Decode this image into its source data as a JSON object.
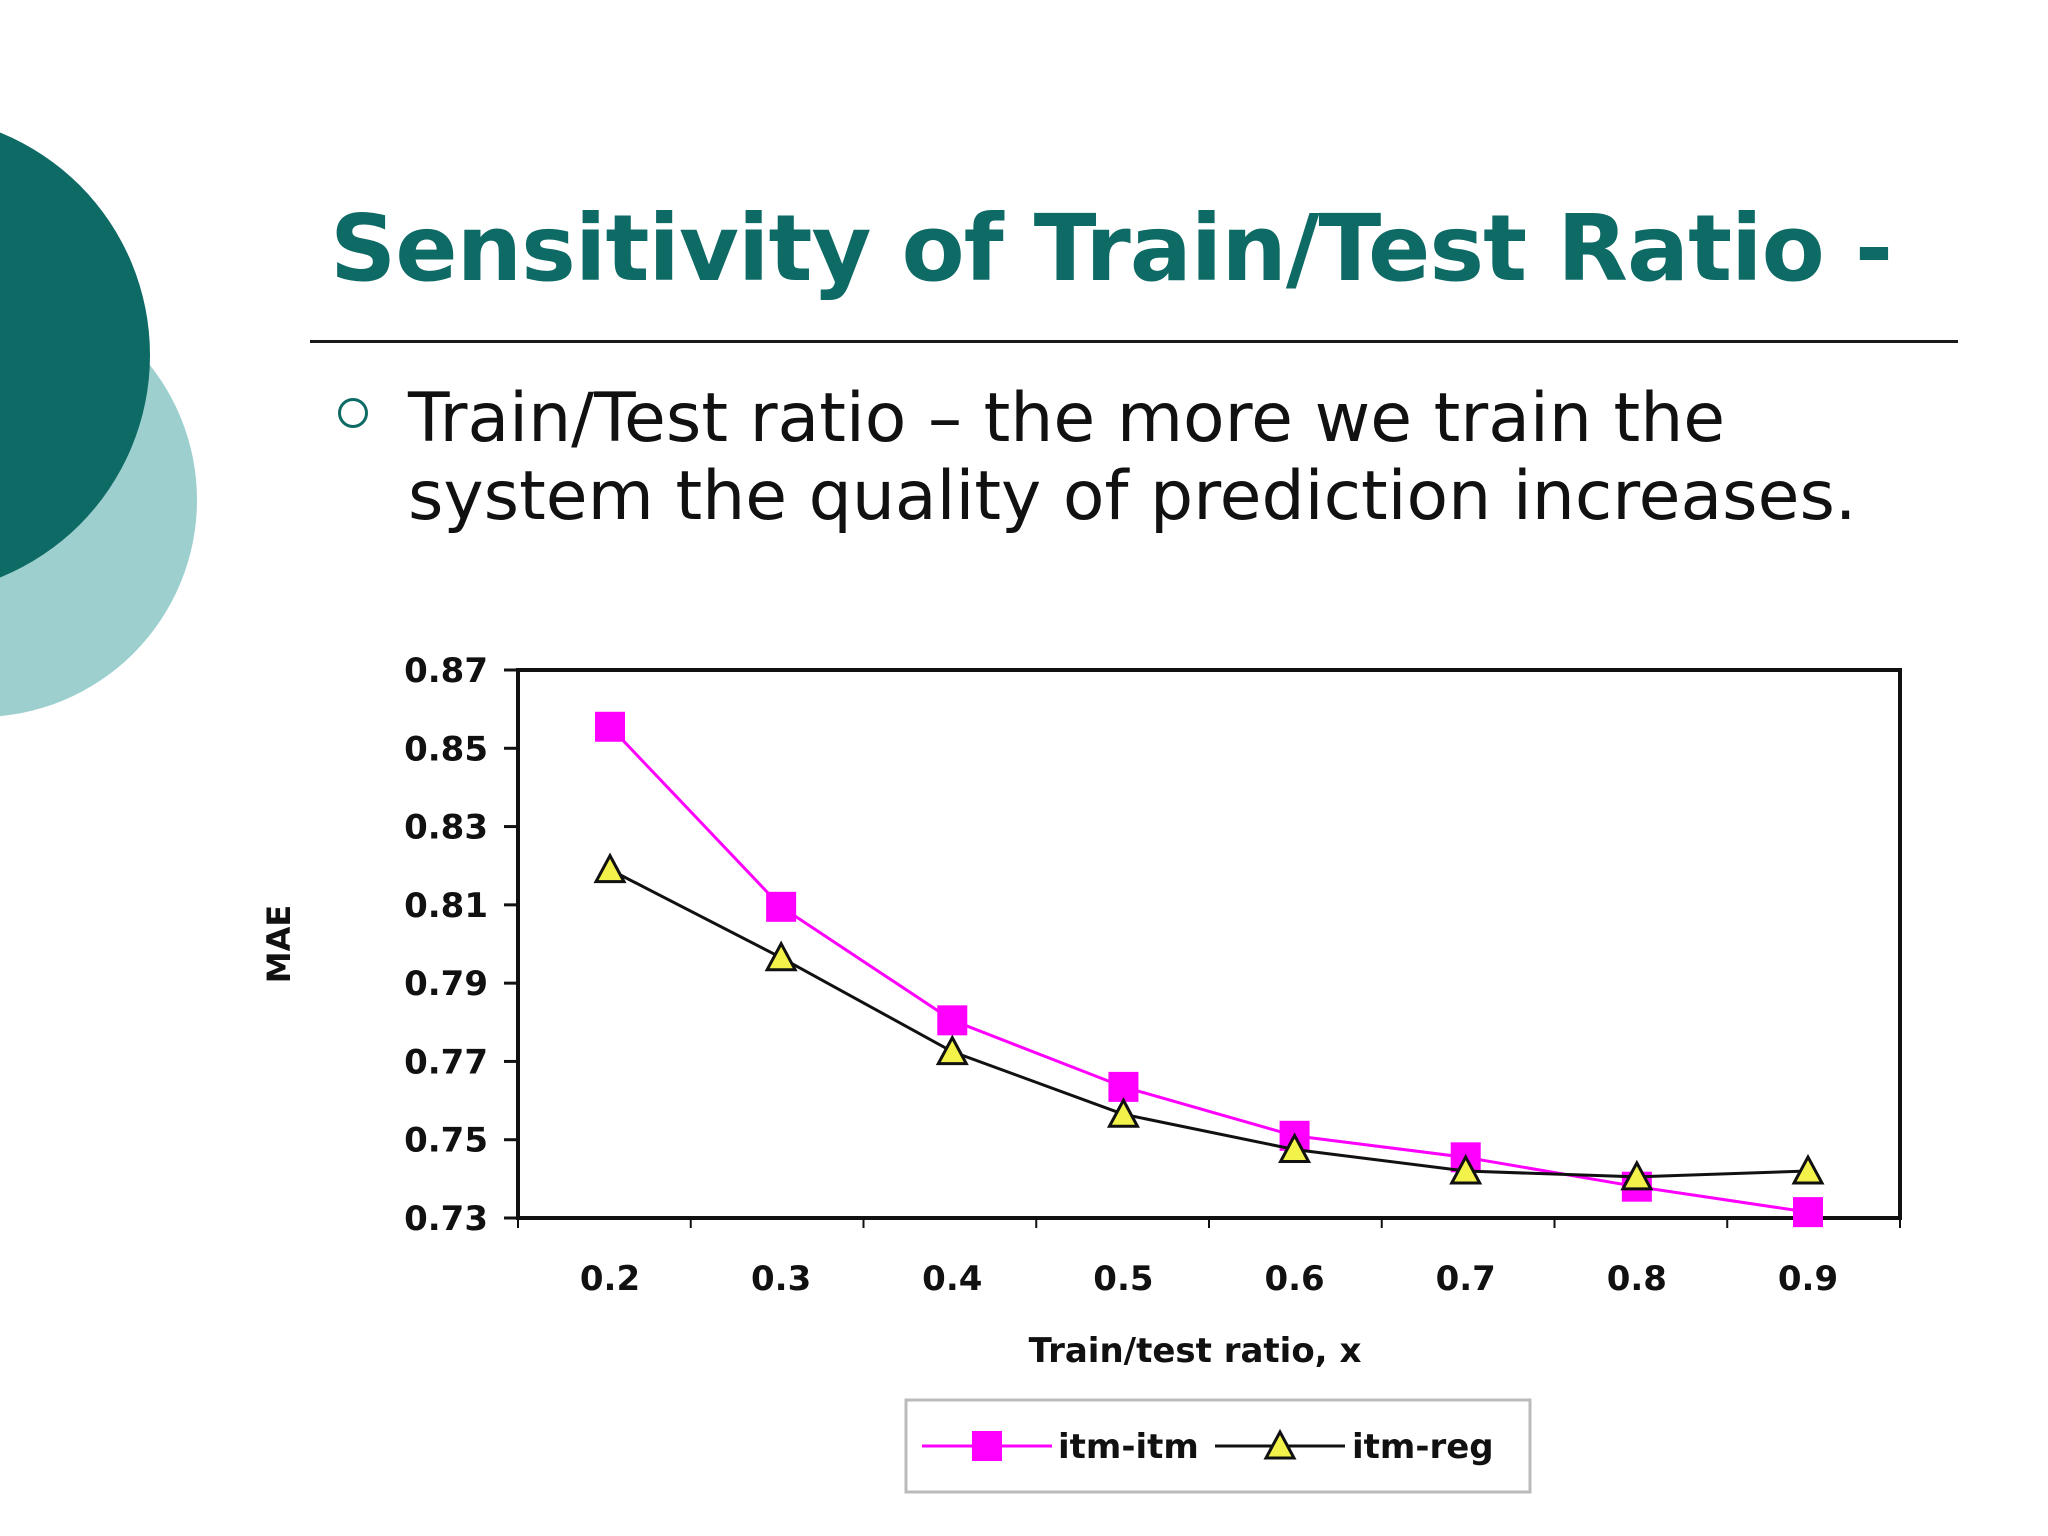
{
  "slide": {
    "title": "Sensitivity of Train/Test Ratio -",
    "bullet": "Train/Test ratio – the more we train the system the quality of prediction increases.",
    "colors": {
      "title": "#0e6a65",
      "circle_dark": "#0e6a65",
      "circle_light": "#9ecfcf"
    },
    "bullet_icon": "hollow-circle-bullet-icon"
  },
  "chart_data": {
    "type": "line",
    "xlabel": "Train/test ratio, x",
    "ylabel": "MAE",
    "x": [
      0.2,
      0.3,
      0.4,
      0.5,
      0.6,
      0.7,
      0.8,
      0.9
    ],
    "x_tick_labels": [
      "0.2",
      "0.3",
      "0.4",
      "0.5",
      "0.6",
      "0.7",
      "0.8",
      "0.9"
    ],
    "ylim": [
      0.73,
      0.87
    ],
    "y_ticks": [
      0.73,
      0.75,
      0.77,
      0.79,
      0.81,
      0.83,
      0.85,
      0.87
    ],
    "y_tick_labels": [
      "0.73",
      "0.75",
      "0.77",
      "0.79",
      "0.81",
      "0.83",
      "0.85",
      "0.87"
    ],
    "grid": false,
    "legend": "bottom",
    "series": [
      {
        "name": "itm-itm",
        "color": "#ff00ff",
        "marker": "square",
        "values": [
          0.8555,
          0.8095,
          0.7805,
          0.7635,
          0.751,
          0.7455,
          0.738,
          0.7315
        ]
      },
      {
        "name": "itm-reg",
        "color": "#111111",
        "marker": "triangle",
        "marker_fill": "#f2f24a",
        "values": [
          0.819,
          0.7965,
          0.7725,
          0.7565,
          0.7475,
          0.742,
          0.7405,
          0.742
        ]
      }
    ]
  }
}
